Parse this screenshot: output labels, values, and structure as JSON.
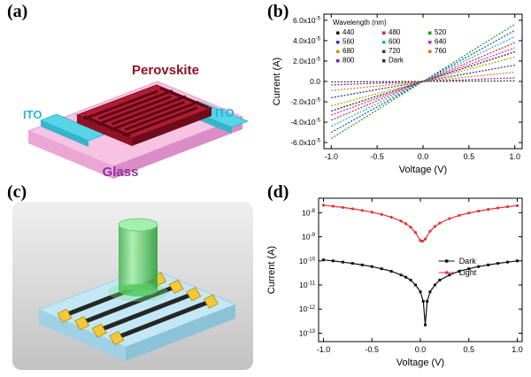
{
  "figure": {
    "background": "#ffffff",
    "panel_labels": {
      "a": "(a)",
      "b": "(b)",
      "c": "(c)",
      "d": "(d)"
    }
  },
  "panel_a": {
    "labels": {
      "perovskite": "Perovskite",
      "ito_left": "ITO",
      "ito_right": "ITO",
      "glass": "Glass"
    },
    "colors": {
      "glass_top": "#f6c3e3",
      "glass_side_left": "#eba6d6",
      "glass_side_right": "#db8cc6",
      "ito": "#55d6e8",
      "perovskite_top": "#b21c32",
      "perovskite_side_left": "#8f1226",
      "perovskite_side_right": "#6f0c1c",
      "finger": "#5c0914",
      "label_perovskite": "#8e1026",
      "label_ito": "#25b7d3",
      "label_glass": "#9030a0"
    }
  },
  "panel_c": {
    "colors": {
      "backdrop": "#d9d9d9",
      "substrate_top": "#c4e7f5",
      "substrate_side_left": "#9fd0e4",
      "substrate_side_right": "#8cc2d8",
      "nanowire": "#262626",
      "electrode": "#f3c93a",
      "beam": "#49b554"
    }
  },
  "chart_data": [
    {
      "id": "panel-b",
      "type": "line",
      "title": "",
      "xlabel": "Voltage (V)",
      "ylabel": "Current (A)",
      "xlim": [
        -1.08,
        1.08
      ],
      "ylim": [
        -6.6e-05,
        6.6e-05
      ],
      "x_ticks": [
        -1.0,
        -0.5,
        0.0,
        0.5,
        1.0
      ],
      "x_tick_labels": [
        "-1.0",
        "-0.5",
        "0.0",
        "0.5",
        "1.0"
      ],
      "y_ticks": [
        -6e-05,
        -4e-05,
        -2e-05,
        0,
        2e-05,
        4e-05,
        6e-05
      ],
      "y_tick_labels": [
        "-6.0x10^-5",
        "-4.0x10^-5",
        "-2.0x10^-5",
        "0.0",
        "2.0x10^-5",
        "4.0x10^-5",
        "6.0x10^-5"
      ],
      "grid": false,
      "line_style": "dotted",
      "legend_title": "Wavelength (nm)",
      "legend_position": "top-left",
      "legend_columns": 3,
      "x": [
        -1,
        1
      ],
      "series": [
        {
          "name": "440",
          "color": "#1a1a1a",
          "values": [
            -2.9e-05,
            2.9e-05
          ]
        },
        {
          "name": "480",
          "color": "#e32222",
          "values": [
            -3.8e-05,
            3.8e-05
          ]
        },
        {
          "name": "520",
          "color": "#15a015",
          "values": [
            -5.6e-05,
            5.6e-05
          ]
        },
        {
          "name": "560",
          "color": "#2040d0",
          "values": [
            -5e-05,
            5e-05
          ]
        },
        {
          "name": "600",
          "color": "#10b6c8",
          "values": [
            -4.4e-05,
            4.4e-05
          ]
        },
        {
          "name": "640",
          "color": "#cc22cc",
          "values": [
            -3.3e-05,
            3.3e-05
          ]
        },
        {
          "name": "680",
          "color": "#b8a000",
          "values": [
            -2.4e-05,
            2.4e-05
          ]
        },
        {
          "name": "720",
          "color": "#283593",
          "values": [
            -1.6e-05,
            1.6e-05
          ]
        },
        {
          "name": "760",
          "color": "#e07818",
          "values": [
            -9e-06,
            9e-06
          ]
        },
        {
          "name": "800",
          "color": "#7b1fa2",
          "values": [
            -3.5e-06,
            3.5e-06
          ]
        },
        {
          "name": "Dark",
          "color": "#333333",
          "values": [
            -5e-07,
            5e-07
          ]
        }
      ]
    },
    {
      "id": "panel-d",
      "type": "line",
      "title": "",
      "yscale": "log",
      "xlabel": "Voltage (V)",
      "ylabel": "Current (A)",
      "xlim": [
        -1.05,
        1.05
      ],
      "ylim_log": [
        -13.35,
        -7.4
      ],
      "x_ticks": [
        -1.0,
        -0.5,
        0.0,
        0.5,
        1.0
      ],
      "x_tick_labels": [
        "-1.0",
        "-0.5",
        "0.0",
        "0.5",
        "1.0"
      ],
      "y_ticks_exp": [
        -13,
        -12,
        -11,
        -10,
        -9,
        -8
      ],
      "y_tick_labels": [
        "10^-13",
        "10^-12",
        "10^-11",
        "10^-10",
        "10^-9",
        "10^-8"
      ],
      "grid": false,
      "legend_position": "right-middle",
      "series": [
        {
          "name": "Dark",
          "color": "#111111",
          "marker": "square",
          "points": [
            [
              -1.0,
              1.1e-10
            ],
            [
              -0.9,
              1e-10
            ],
            [
              -0.8,
              8.9e-11
            ],
            [
              -0.7,
              7.9e-11
            ],
            [
              -0.6,
              6.8e-11
            ],
            [
              -0.5,
              5.8e-11
            ],
            [
              -0.4,
              4.7e-11
            ],
            [
              -0.3,
              3.7e-11
            ],
            [
              -0.2,
              2.6e-11
            ],
            [
              -0.15,
              2.1e-11
            ],
            [
              -0.1,
              1.6e-11
            ],
            [
              -0.05,
              1e-11
            ],
            [
              0.0,
              5.2e-12
            ],
            [
              0.03,
              2.1e-12
            ],
            [
              0.05,
              2.2e-13
            ],
            [
              0.07,
              2.1e-12
            ],
            [
              0.1,
              5.2e-12
            ],
            [
              0.15,
              1e-11
            ],
            [
              0.2,
              1.6e-11
            ],
            [
              0.3,
              2.6e-11
            ],
            [
              0.4,
              3.7e-11
            ],
            [
              0.5,
              4.7e-11
            ],
            [
              0.6,
              5.8e-11
            ],
            [
              0.7,
              6.8e-11
            ],
            [
              0.8,
              7.9e-11
            ],
            [
              0.9,
              8.9e-11
            ],
            [
              1.0,
              1e-10
            ]
          ]
        },
        {
          "name": "Light",
          "color": "#e53030",
          "marker": "circle",
          "points": [
            [
              -1.0,
              2.05e-08
            ],
            [
              -0.9,
              1.85e-08
            ],
            [
              -0.8,
              1.65e-08
            ],
            [
              -0.7,
              1.45e-08
            ],
            [
              -0.6,
              1.25e-08
            ],
            [
              -0.5,
              1.05e-08
            ],
            [
              -0.4,
              8.5e-09
            ],
            [
              -0.3,
              6.5e-09
            ],
            [
              -0.2,
              4.5e-09
            ],
            [
              -0.15,
              3.5e-09
            ],
            [
              -0.1,
              2.5e-09
            ],
            [
              -0.05,
              1.5e-09
            ],
            [
              0.0,
              7e-10
            ],
            [
              0.02,
              6.5e-10
            ],
            [
              0.05,
              8e-10
            ],
            [
              0.1,
              1.7e-09
            ],
            [
              0.15,
              2.7e-09
            ],
            [
              0.2,
              3.7e-09
            ],
            [
              0.3,
              5.7e-09
            ],
            [
              0.4,
              7.7e-09
            ],
            [
              0.5,
              9.7e-09
            ],
            [
              0.6,
              1.17e-08
            ],
            [
              0.7,
              1.37e-08
            ],
            [
              0.8,
              1.57e-08
            ],
            [
              0.9,
              1.77e-08
            ],
            [
              1.0,
              1.97e-08
            ]
          ]
        }
      ]
    }
  ]
}
